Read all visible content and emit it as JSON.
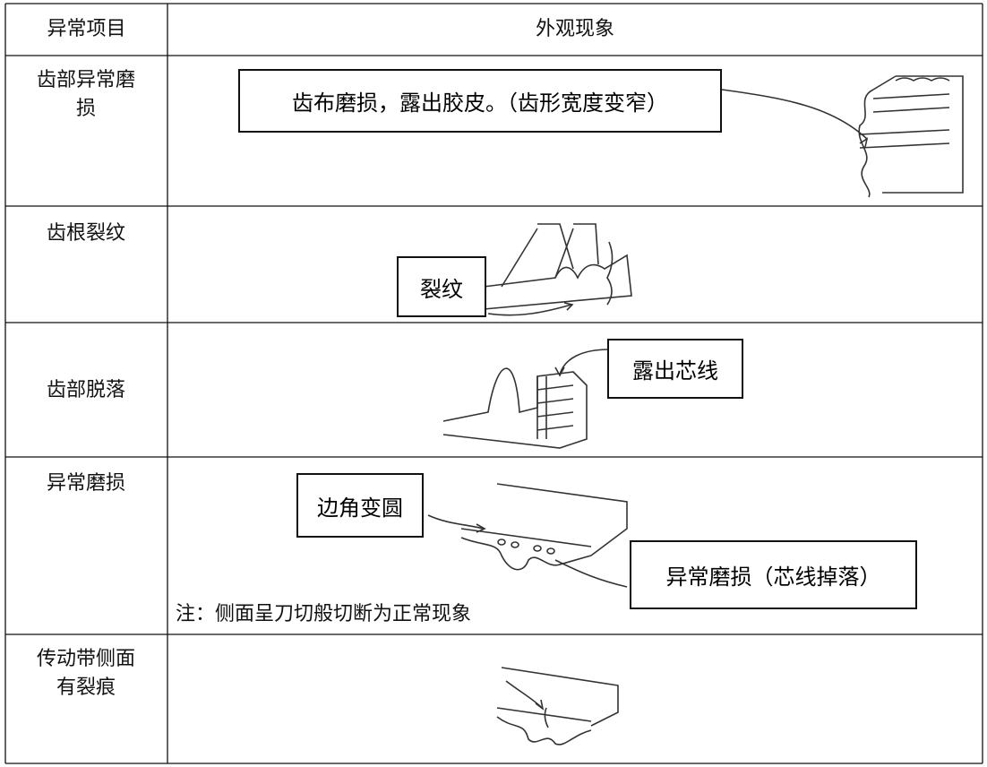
{
  "table": {
    "header": [
      "异常项目",
      "外观现象"
    ],
    "rows": [
      {
        "item": "齿部异常磨损",
        "callouts": [
          "齿布磨损，露出胶皮。（齿形宽度变窄）"
        ]
      },
      {
        "item": "齿根裂纹",
        "callouts": [
          "裂纹"
        ]
      },
      {
        "item": "齿部脱落",
        "callouts": [
          "露出芯线"
        ]
      },
      {
        "item": "异常磨损",
        "callouts": [
          "边角变圆",
          "异常磨损（芯线掉落）"
        ],
        "note": "注：侧面呈刀切般切断为正常现象"
      },
      {
        "item": "传动带侧面有裂痕"
      }
    ]
  }
}
